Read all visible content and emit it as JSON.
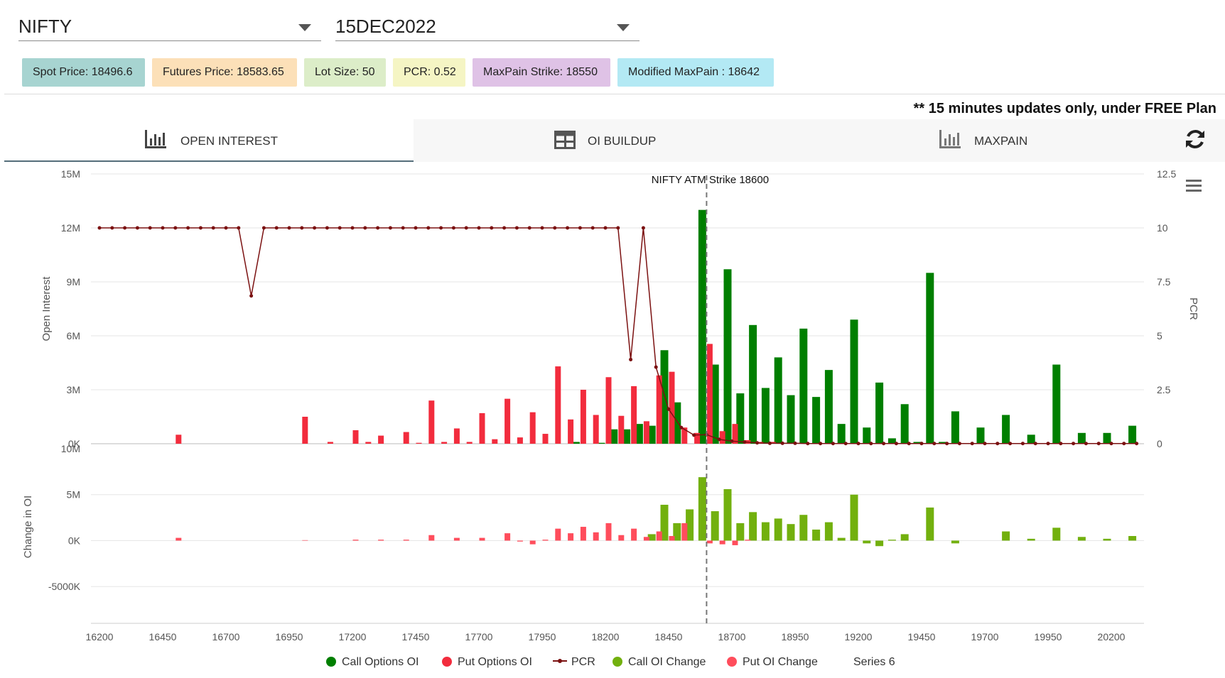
{
  "selectors": {
    "symbol": "NIFTY",
    "expiry": "15DEC2022"
  },
  "badges": [
    {
      "label": "Spot Price: 18496.6",
      "bg": "#a7d4d1"
    },
    {
      "label": "Futures Price: 18583.65",
      "bg": "#fce0b8"
    },
    {
      "label": "Lot Size: 50",
      "bg": "#dcedc8"
    },
    {
      "label": "PCR: 0.52",
      "bg": "#f5f5c4"
    },
    {
      "label": "MaxPain Strike: 18550",
      "bg": "#dfc2e6"
    },
    {
      "label": "Modified MaxPain : 18642",
      "bg": "#b3e9f4"
    }
  ],
  "notice": "** 15 minutes updates only, under FREE Plan",
  "tabs": [
    {
      "label": "OPEN INTEREST",
      "icon": "bar-chart-icon"
    },
    {
      "label": "OI BUILDUP",
      "icon": "table-icon"
    },
    {
      "label": "MAXPAIN",
      "icon": "bar-chart-icon"
    }
  ],
  "chart_data": {
    "type": "bar",
    "annotation": "NIFTY ATM Strike 18600",
    "atm_strike": 18600,
    "x": {
      "min": 16200,
      "max": 20300,
      "ticks": [
        16200,
        16450,
        16700,
        16950,
        17200,
        17450,
        17700,
        17950,
        18200,
        18450,
        18700,
        18950,
        19200,
        19450,
        19700,
        19950,
        20200
      ]
    },
    "top_panel": {
      "ylabel_left": "Open Interest",
      "ylabel_right": "PCR",
      "ylim_left": [
        0,
        15000000
      ],
      "yticks_left": [
        "0K",
        "3M",
        "6M",
        "9M",
        "12M",
        "15M"
      ],
      "ylim_right": [
        0,
        12.5
      ],
      "yticks_right": [
        "0",
        "2.5",
        "5",
        "7.5",
        "10",
        "12.5"
      ],
      "call_oi": [
        [
          18100,
          0.1
        ],
        [
          18200,
          0.05
        ],
        [
          18250,
          0.8
        ],
        [
          18300,
          0.8
        ],
        [
          18350,
          1.1
        ],
        [
          18400,
          1.0
        ],
        [
          18450,
          5.2
        ],
        [
          18500,
          2.3
        ],
        [
          18600,
          13.0
        ],
        [
          18650,
          4.4
        ],
        [
          18700,
          9.7
        ],
        [
          18750,
          2.8
        ],
        [
          18800,
          6.6
        ],
        [
          18850,
          3.1
        ],
        [
          18900,
          4.8
        ],
        [
          18950,
          2.7
        ],
        [
          19000,
          6.4
        ],
        [
          19050,
          2.6
        ],
        [
          19100,
          4.1
        ],
        [
          19150,
          1.1
        ],
        [
          19200,
          6.9
        ],
        [
          19250,
          0.9
        ],
        [
          19300,
          3.4
        ],
        [
          19350,
          0.3
        ],
        [
          19400,
          2.2
        ],
        [
          19450,
          0.1
        ],
        [
          19500,
          9.5
        ],
        [
          19550,
          0.1
        ],
        [
          19600,
          1.8
        ],
        [
          19700,
          0.9
        ],
        [
          19800,
          1.6
        ],
        [
          19900,
          0.5
        ],
        [
          20000,
          4.4
        ],
        [
          20100,
          0.6
        ],
        [
          20200,
          0.6
        ],
        [
          20300,
          1.0
        ]
      ],
      "put_oi": [
        [
          16500,
          0.5
        ],
        [
          17000,
          1.5
        ],
        [
          17100,
          0.1
        ],
        [
          17200,
          0.75
        ],
        [
          17250,
          0.1
        ],
        [
          17300,
          0.45
        ],
        [
          17400,
          0.65
        ],
        [
          17450,
          0.05
        ],
        [
          17500,
          2.4
        ],
        [
          17550,
          0.1
        ],
        [
          17600,
          0.85
        ],
        [
          17650,
          0.1
        ],
        [
          17700,
          1.7
        ],
        [
          17750,
          0.25
        ],
        [
          17800,
          2.5
        ],
        [
          17850,
          0.35
        ],
        [
          17900,
          1.75
        ],
        [
          17950,
          0.55
        ],
        [
          18000,
          4.3
        ],
        [
          18050,
          1.35
        ],
        [
          18100,
          3.0
        ],
        [
          18150,
          1.6
        ],
        [
          18200,
          3.7
        ],
        [
          18250,
          1.55
        ],
        [
          18300,
          3.2
        ],
        [
          18350,
          1.25
        ],
        [
          18400,
          3.8
        ],
        [
          18450,
          4.0
        ],
        [
          18500,
          0.9
        ],
        [
          18550,
          0.6
        ],
        [
          18600,
          5.55
        ],
        [
          18650,
          0.7
        ],
        [
          18700,
          1.1
        ],
        [
          18750,
          0.2
        ],
        [
          18800,
          0.1
        ],
        [
          18850,
          0.1
        ],
        [
          18900,
          0.05
        ],
        [
          18950,
          0.05
        ]
      ],
      "pcr": [
        [
          16200,
          10
        ],
        [
          16250,
          10
        ],
        [
          16300,
          10
        ],
        [
          16350,
          10
        ],
        [
          16400,
          10
        ],
        [
          16450,
          10
        ],
        [
          16500,
          10
        ],
        [
          16550,
          10
        ],
        [
          16600,
          10
        ],
        [
          16650,
          10
        ],
        [
          16700,
          10
        ],
        [
          16750,
          10
        ],
        [
          16800,
          6.85
        ],
        [
          16850,
          10
        ],
        [
          16900,
          10
        ],
        [
          16950,
          10
        ],
        [
          17000,
          10
        ],
        [
          17050,
          10
        ],
        [
          17100,
          10
        ],
        [
          17150,
          10
        ],
        [
          17200,
          10
        ],
        [
          17250,
          10
        ],
        [
          17300,
          10
        ],
        [
          17350,
          10
        ],
        [
          17400,
          10
        ],
        [
          17450,
          10
        ],
        [
          17500,
          10
        ],
        [
          17550,
          10
        ],
        [
          17600,
          10
        ],
        [
          17650,
          10
        ],
        [
          17700,
          10
        ],
        [
          17750,
          10
        ],
        [
          17800,
          10
        ],
        [
          17850,
          10
        ],
        [
          17900,
          10
        ],
        [
          17950,
          10
        ],
        [
          18000,
          10
        ],
        [
          18050,
          10
        ],
        [
          18100,
          10
        ],
        [
          18150,
          10
        ],
        [
          18200,
          10
        ],
        [
          18250,
          10
        ],
        [
          18300,
          3.9
        ],
        [
          18350,
          10
        ],
        [
          18400,
          3.55
        ],
        [
          18450,
          1.6
        ],
        [
          18500,
          0.75
        ],
        [
          18550,
          0.4
        ],
        [
          18600,
          0.42
        ],
        [
          18650,
          0.2
        ],
        [
          18700,
          0.12
        ],
        [
          18750,
          0.08
        ],
        [
          18800,
          0.04
        ],
        [
          18850,
          0.02
        ],
        [
          18900,
          0.02
        ],
        [
          18950,
          0.02
        ],
        [
          19000,
          0.01
        ],
        [
          19050,
          0.01
        ],
        [
          19100,
          0.01
        ],
        [
          19150,
          0.01
        ],
        [
          19200,
          0.01
        ],
        [
          19250,
          0.01
        ],
        [
          19300,
          0.01
        ],
        [
          19350,
          0.01
        ],
        [
          19400,
          0.01
        ],
        [
          19450,
          0.01
        ],
        [
          19500,
          0.01
        ],
        [
          19550,
          0.01
        ],
        [
          19600,
          0.01
        ],
        [
          19650,
          0.01
        ],
        [
          19700,
          0.01
        ],
        [
          19750,
          0.01
        ],
        [
          19800,
          0.01
        ],
        [
          19850,
          0.01
        ],
        [
          19900,
          0.01
        ],
        [
          19950,
          0.01
        ],
        [
          20000,
          0.01
        ],
        [
          20050,
          0.01
        ],
        [
          20100,
          0.01
        ],
        [
          20150,
          0.01
        ],
        [
          20200,
          0.01
        ],
        [
          20250,
          0.01
        ],
        [
          20300,
          0.01
        ]
      ]
    },
    "bottom_panel": {
      "ylabel": "Change in OI",
      "ylim": [
        -9,
        10
      ],
      "yticks": [
        "-5000K",
        "0K",
        "5M",
        "10M"
      ],
      "call_change": [
        [
          18400,
          0.7
        ],
        [
          18450,
          3.9
        ],
        [
          18500,
          1.9
        ],
        [
          18550,
          3.4
        ],
        [
          18600,
          6.9
        ],
        [
          18650,
          3.2
        ],
        [
          18700,
          5.6
        ],
        [
          18750,
          1.9
        ],
        [
          18800,
          3.1
        ],
        [
          18850,
          2.0
        ],
        [
          18900,
          2.4
        ],
        [
          18950,
          1.8
        ],
        [
          19000,
          2.8
        ],
        [
          19050,
          1.2
        ],
        [
          19100,
          2.0
        ],
        [
          19150,
          0.3
        ],
        [
          19200,
          5.0
        ],
        [
          19250,
          -0.3
        ],
        [
          19300,
          -0.6
        ],
        [
          19350,
          0.1
        ],
        [
          19400,
          0.7
        ],
        [
          19500,
          3.6
        ],
        [
          19600,
          -0.3
        ],
        [
          19800,
          1.0
        ],
        [
          19900,
          0.2
        ],
        [
          20000,
          1.4
        ],
        [
          20100,
          0.4
        ],
        [
          20200,
          0.2
        ],
        [
          20300,
          0.5
        ]
      ],
      "put_change": [
        [
          16500,
          0.3
        ],
        [
          17000,
          0.05
        ],
        [
          17200,
          0.1
        ],
        [
          17300,
          0.1
        ],
        [
          17400,
          0.1
        ],
        [
          17500,
          0.6
        ],
        [
          17600,
          0.3
        ],
        [
          17700,
          0.3
        ],
        [
          17800,
          0.8
        ],
        [
          17850,
          -0.1
        ],
        [
          17900,
          -0.4
        ],
        [
          17950,
          0.1
        ],
        [
          18000,
          1.3
        ],
        [
          18050,
          0.8
        ],
        [
          18100,
          1.5
        ],
        [
          18150,
          0.9
        ],
        [
          18200,
          1.9
        ],
        [
          18250,
          0.6
        ],
        [
          18300,
          1.3
        ],
        [
          18350,
          0.4
        ],
        [
          18400,
          1.0
        ],
        [
          18450,
          0.5
        ],
        [
          18500,
          1.9
        ],
        [
          18600,
          -0.3
        ],
        [
          18650,
          -0.4
        ],
        [
          18700,
          -0.5
        ],
        [
          18750,
          0.1
        ]
      ]
    },
    "colors": {
      "call_oi": "#007f00",
      "put_oi": "#f22c3d",
      "pcr": "#7b1111",
      "call_change": "#72b00e",
      "put_change": "#ff4d5c"
    },
    "legend": [
      "Call Options OI",
      "Put Options OI",
      "PCR",
      "Call OI Change",
      "Put OI Change",
      "Series 6"
    ]
  }
}
